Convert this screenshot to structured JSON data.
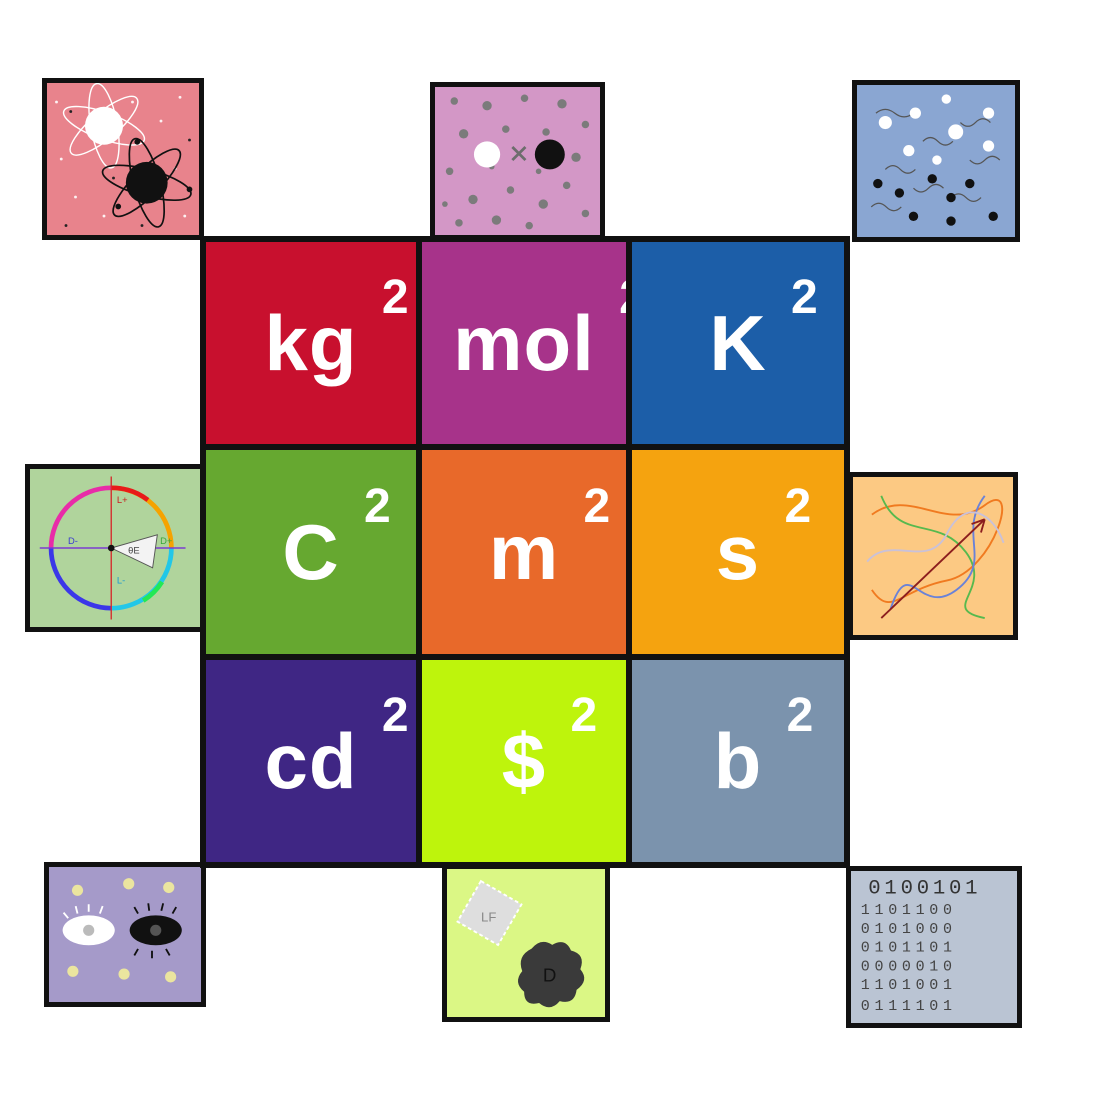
{
  "grid": {
    "exponent": "2",
    "cells": [
      {
        "unit": "kg",
        "color": "#c8102e"
      },
      {
        "unit": "mol",
        "color": "#a7338a"
      },
      {
        "unit": "K",
        "color": "#1c5ea8"
      },
      {
        "unit": "C",
        "color": "#66a830"
      },
      {
        "unit": "m",
        "color": "#e8692a"
      },
      {
        "unit": "s",
        "color": "#f5a30f"
      },
      {
        "unit": "cd",
        "color": "#3f2684"
      },
      {
        "unit": "$",
        "color": "#bef40c"
      },
      {
        "unit": "b",
        "color": "#7b93ad"
      }
    ]
  },
  "tiles": [
    {
      "name": "atoms-icon-tile",
      "color": "#e8838c"
    },
    {
      "name": "particles-icon-tile",
      "color": "#d397c6"
    },
    {
      "name": "molecules-icon-tile",
      "color": "#8aa6d2"
    },
    {
      "name": "color-wheel-icon-tile",
      "color": "#b0d49c"
    },
    {
      "name": "random-paths-icon-tile",
      "color": "#fcc983"
    },
    {
      "name": "eyes-icon-tile",
      "color": "#a59ac9"
    },
    {
      "name": "leaf-sparkle-icon-tile",
      "color": "#dbf785"
    },
    {
      "name": "binary-icon-tile",
      "color": "#bac4d3"
    }
  ],
  "icon_text": {
    "color_wheel": {
      "l_plus": "L+",
      "l_minus": "L-",
      "d_minus": "D-",
      "d_plus": "D+",
      "theta": "θE"
    },
    "leaf": {
      "lf": "LF",
      "d": "D"
    },
    "binary_rows": [
      "0100101",
      "1101100",
      "0101000",
      "0101101",
      "0000010",
      "1101001",
      "0111101"
    ]
  }
}
